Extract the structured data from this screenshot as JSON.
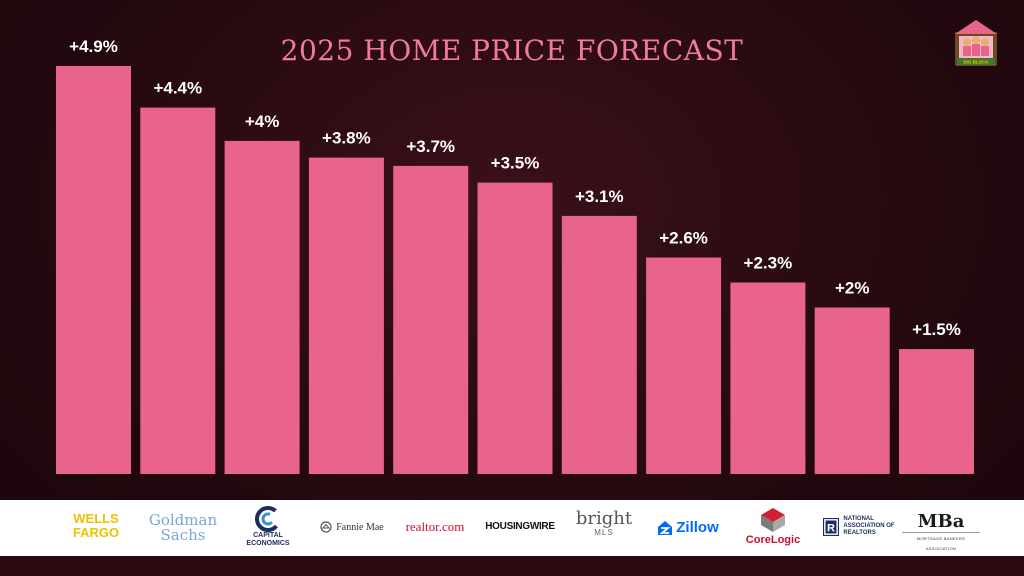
{
  "chart_data": {
    "type": "bar",
    "title": "2025 HOME PRICE FORECAST",
    "categories": [
      "WELLS FARGO",
      "Goldman Sachs",
      "CAPITAL ECONOMICS",
      "Fannie Mae",
      "realtor.com",
      "HOUSINGWIRE",
      "bright MLS",
      "Zillow",
      "CoreLogic",
      "NATIONAL ASSOCIATION OF REALTORS",
      "MBa"
    ],
    "values": [
      4.9,
      4.4,
      4.0,
      3.8,
      3.7,
      3.5,
      3.1,
      2.6,
      2.3,
      2.0,
      1.5
    ],
    "data_labels": [
      "+4.9%",
      "+4.4%",
      "+4%",
      "+3.8%",
      "+3.7%",
      "+3.5%",
      "+3.1%",
      "+2.6%",
      "+2.3%",
      "+2%",
      "+1.5%"
    ],
    "xlabel": "",
    "ylabel": "",
    "ylim": [
      0,
      4.9
    ],
    "grid": false,
    "legend": "none",
    "bar_color": "#e8648a"
  },
  "logos": {
    "wells": [
      "WELLS",
      "FARGO"
    ],
    "goldman": [
      "Goldman",
      "Sachs"
    ],
    "capital": [
      "CAPITAL",
      "ECONOMICS"
    ],
    "fannie": "Fannie Mae",
    "realtor": "realtor.com",
    "housing": "HOUSINGWIRE",
    "bright": [
      "bright",
      "MLS"
    ],
    "zillow": "Zillow",
    "corelogic": "CoreLogic",
    "nar": [
      "NATIONAL",
      "ASSOCIATION OF",
      "REALTORS"
    ],
    "mba": [
      "MBa",
      "MORTGAGE BANKERS ASSOCIATION"
    ]
  },
  "brand": {
    "logo_text": "BIG BLOCK"
  },
  "colors": {
    "background": "#24090f",
    "bar": "#e8648a",
    "title": "#f07aa0",
    "label": "#ffffff"
  }
}
